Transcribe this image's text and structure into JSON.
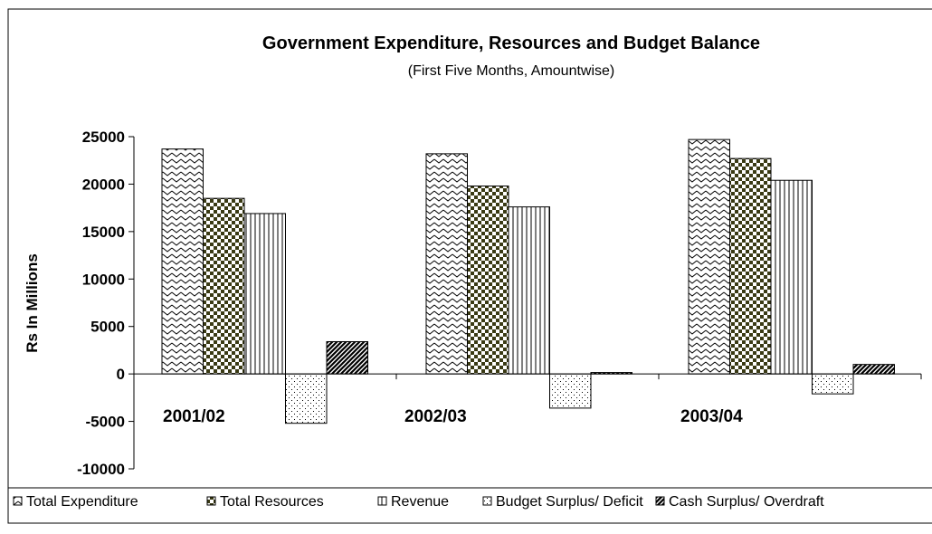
{
  "chart_data": {
    "type": "bar",
    "title": "Government Expenditure, Resources and Budget Balance",
    "subtitle": "(First Five  Months,  Amountwise)",
    "ylabel": "Rs In Millions",
    "xlabel": "",
    "ylim": [
      -10000,
      25000
    ],
    "yticks": [
      25000,
      20000,
      15000,
      10000,
      5000,
      0,
      -5000,
      -10000
    ],
    "ytick_labels": [
      "25000",
      "20000",
      "15000",
      "10000",
      "5000",
      "0",
      "-5000",
      "-10000"
    ],
    "categories": [
      "2001/02",
      "2002/03",
      "2003/04"
    ],
    "series": [
      {
        "name": "Total Expenditure",
        "pattern": "wave",
        "values": [
          23700,
          23200,
          24700
        ]
      },
      {
        "name": "Total Resources",
        "pattern": "checker",
        "values": [
          18500,
          19800,
          22700
        ]
      },
      {
        "name": "Revenue",
        "pattern": "vlines",
        "values": [
          16900,
          17600,
          20400
        ]
      },
      {
        "name": "Budget Surplus/ Deficit",
        "pattern": "dots",
        "values": [
          -5200,
          -3600,
          -2100
        ]
      },
      {
        "name": "Cash Surplus/ Overdraft",
        "pattern": "hatch",
        "values": [
          3400,
          150,
          1000
        ]
      }
    ],
    "grid": false,
    "legend_position": "bottom",
    "colors": {
      "ink": "#000000",
      "fill_dark": "#3a3a14",
      "background": "#ffffff"
    }
  }
}
